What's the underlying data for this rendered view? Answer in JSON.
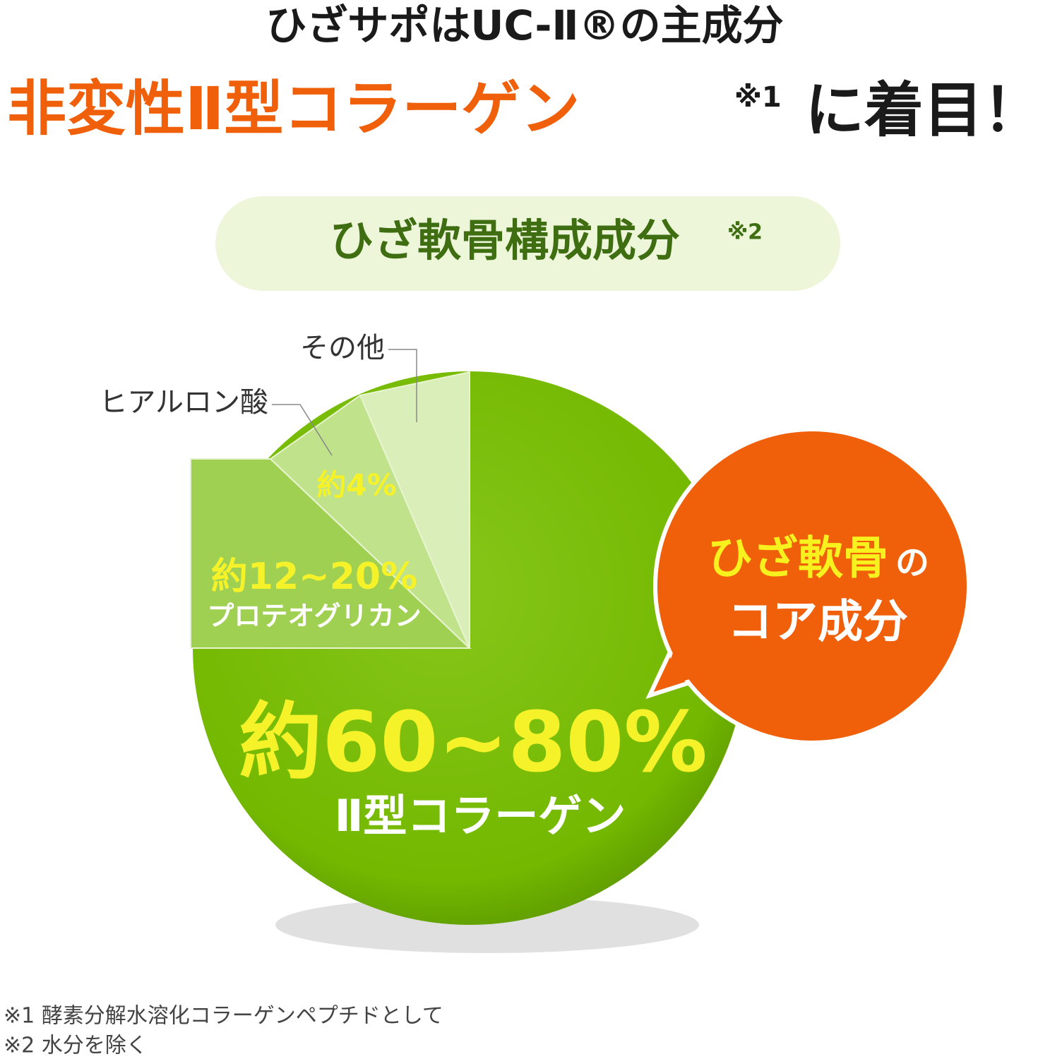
{
  "header": {
    "line1": "ひざサポはUC-Ⅱ®の主成分",
    "line2_highlight": "非変性Ⅱ型コラーゲン",
    "line2_note": "※1",
    "line2_rest": "に着目！"
  },
  "pill": {
    "title": "ひざ軟骨構成成分",
    "note": "※2"
  },
  "pie": {
    "slices": [
      {
        "name": "Ⅱ型コラーゲン",
        "share": "約60~80%"
      },
      {
        "name": "プロテオグリカン",
        "share": "約12~20%"
      },
      {
        "name": "ヒアルロン酸",
        "share": "約4%"
      },
      {
        "name": "その他"
      }
    ]
  },
  "bubble": {
    "highlight": "ひざ軟骨",
    "particle": "の",
    "line2": "コア成分"
  },
  "footnotes": [
    "※1 酵素分解水溶化コラーゲンペプチドとして",
    "※2 水分を除く"
  ]
}
